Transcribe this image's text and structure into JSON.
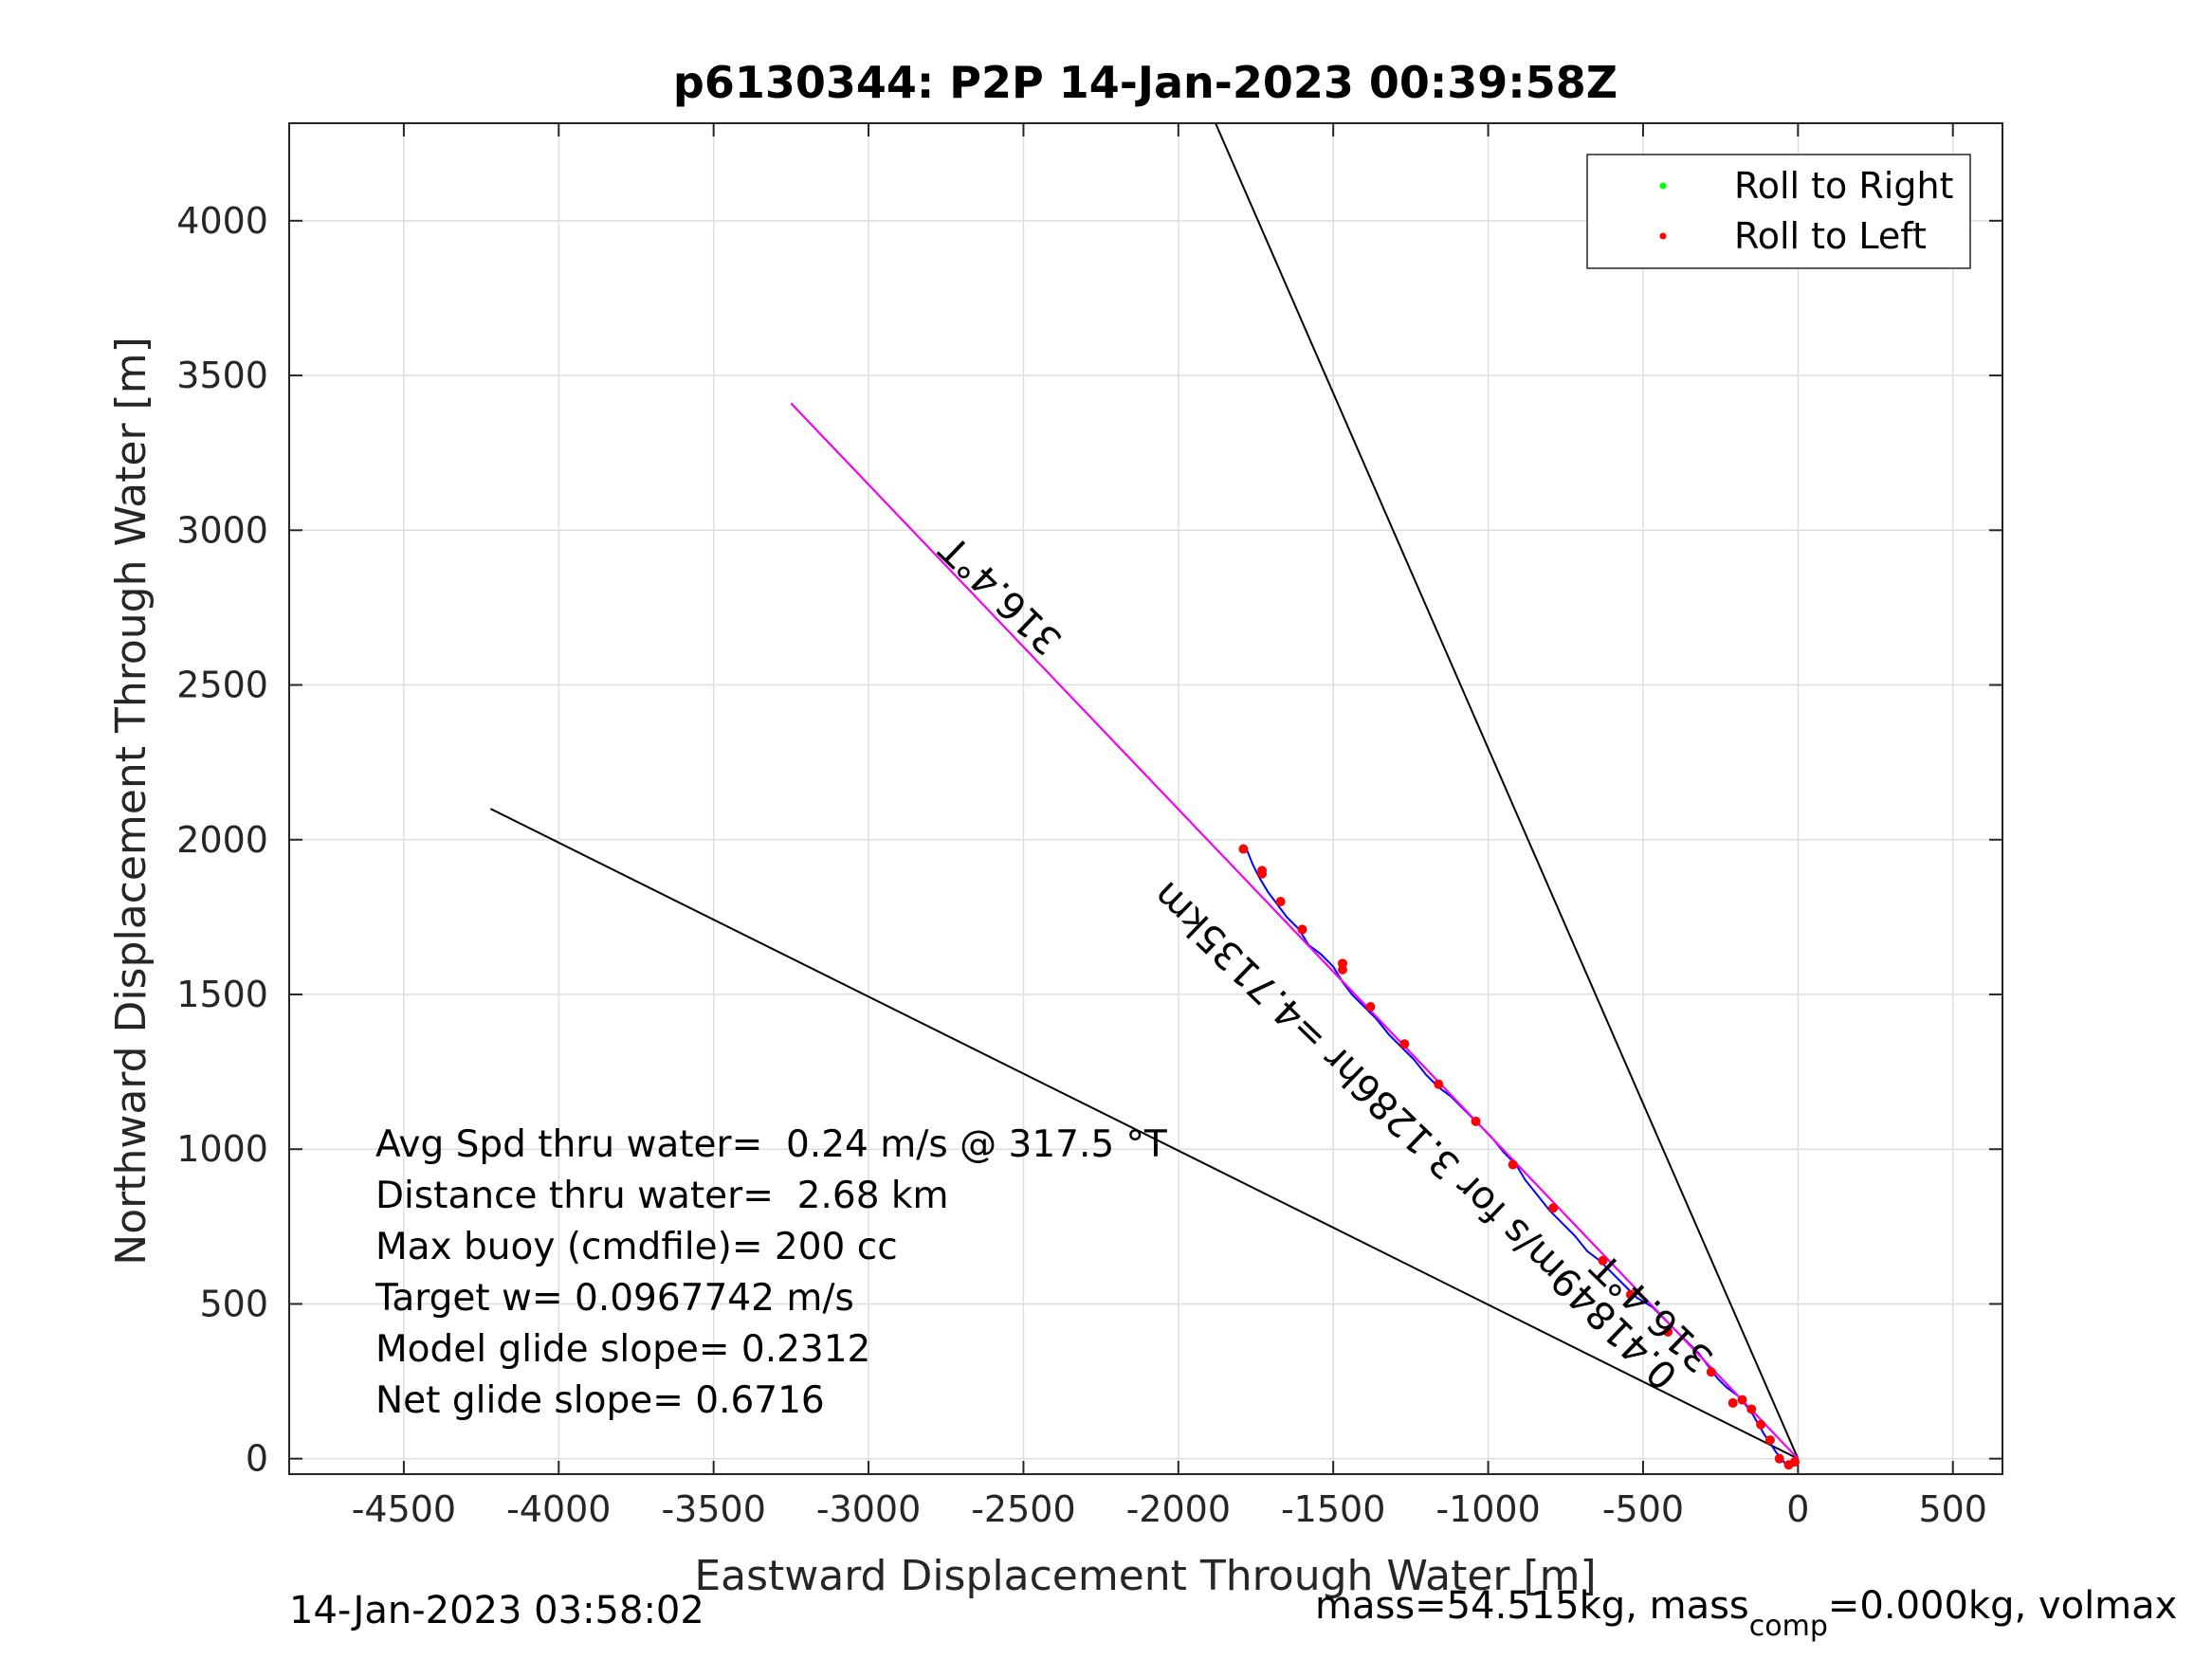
{
  "chart_data": {
    "type": "scatter",
    "title": "p6130344: P2P 14-Jan-2023 00:39:58Z",
    "xlabel": "Eastward Displacement Through Water [m]",
    "ylabel": "Northward Displacement Through Water [m]",
    "xlim": [
      -4870,
      660
    ],
    "ylim": [
      -50,
      4315
    ],
    "xticks": [
      -4500,
      -4000,
      -3500,
      -3000,
      -2500,
      -2000,
      -1500,
      -1000,
      -500,
      0,
      500
    ],
    "yticks": [
      0,
      500,
      1000,
      1500,
      2000,
      2500,
      3000,
      3500,
      4000
    ],
    "grid": true,
    "legend_position": "top-right",
    "legend": [
      {
        "label": "Roll to Right",
        "color": "#00ff00"
      },
      {
        "label": "Roll to Left",
        "color": "#ff0000"
      }
    ],
    "colors": {
      "track": "#0000ff",
      "heading_line": "#ff00ff",
      "bounds": "#000000",
      "roll_left": "#ff0000",
      "roll_right": "#00ff00"
    },
    "boundary_lines": [
      {
        "x": [
          -1880,
          0
        ],
        "y": [
          4315,
          0
        ]
      },
      {
        "x": [
          -4220,
          0
        ],
        "y": [
          2100,
          0
        ]
      }
    ],
    "heading_line": {
      "x": [
        -3250,
        0
      ],
      "y": [
        3410,
        0
      ]
    },
    "track": {
      "x": [
        0,
        -10,
        -30,
        -70,
        -110,
        -150,
        -190,
        -230,
        -260,
        -290,
        -320,
        -360,
        -400,
        -430,
        -470,
        -520,
        -560,
        -600,
        -640,
        -680,
        -720,
        -760,
        -800,
        -840,
        -880,
        -910,
        -950,
        -990,
        -1030,
        -1080,
        -1120,
        -1160,
        -1200,
        -1240,
        -1280,
        -1320,
        -1360,
        -1400,
        -1440,
        -1470,
        -1500,
        -1540,
        -1580,
        -1610,
        -1650,
        -1680,
        -1710,
        -1740,
        -1760,
        -1780
      ],
      "y": [
        0,
        -20,
        -30,
        20,
        80,
        150,
        200,
        230,
        260,
        300,
        340,
        380,
        420,
        450,
        490,
        520,
        560,
        600,
        640,
        670,
        720,
        760,
        800,
        850,
        900,
        950,
        990,
        1040,
        1080,
        1130,
        1170,
        1200,
        1240,
        1290,
        1330,
        1370,
        1420,
        1460,
        1500,
        1540,
        1590,
        1630,
        1660,
        1710,
        1750,
        1790,
        1830,
        1880,
        1920,
        1970
      ]
    },
    "roll_left_points": {
      "x": [
        -10,
        -30,
        -60,
        -90,
        -120,
        -150,
        -180,
        -210,
        -280,
        -420,
        -540,
        -630,
        -790,
        -920,
        -1040,
        -1160,
        -1270,
        -1380,
        -1470,
        -1470,
        -1600,
        -1670,
        -1730,
        -1730,
        -1790
      ],
      "y": [
        -10,
        -20,
        0,
        60,
        110,
        160,
        190,
        180,
        280,
        410,
        530,
        640,
        810,
        950,
        1090,
        1210,
        1340,
        1460,
        1580,
        1600,
        1710,
        1800,
        1890,
        1900,
        1970
      ]
    },
    "roll_right_points": {
      "x": [],
      "y": []
    },
    "annotations": {
      "heading_upper": "316.4°T",
      "heading_lower": "316.4°T",
      "leg_text": "0.41849m/s for 3.1286hr =4.7135km"
    },
    "stats": [
      "Avg Spd thru water=  0.24 m/s @ 317.5 °T",
      "Distance thru water=  2.68 km",
      "Max buoy (cmdfile)= 200 cc",
      "Target w= 0.0967742 m/s",
      "Model glide slope= 0.2312",
      "Net glide slope= 0.6716"
    ],
    "footer": {
      "timestamp": "14-Jan-2023 03:58:02",
      "mass_prefix": "mass=54.515kg, mass",
      "mass_subscript": "comp",
      "mass_suffix": "=0.000kg, volmax"
    }
  }
}
